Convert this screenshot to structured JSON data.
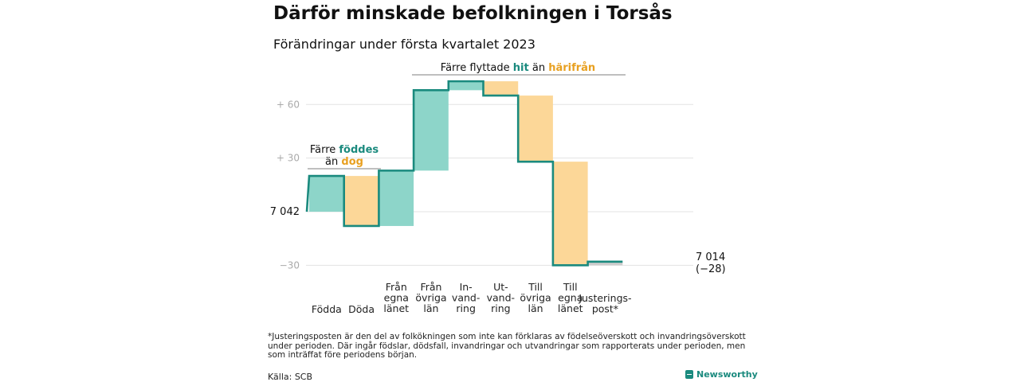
{
  "title": "Därför minskade befolkningen i Torsås",
  "subtitle": "Förändringar under första kvartalet 2023",
  "footnote": "*Justeringsposten är den del av folkökningen som inte kan förklaras av födelseöverskott och invandringsöverskott under perioden. Där ingår födslar, dödsfall, invandringar och utvandringar som rapporterats under perioden, men som inträffat före periodens början.",
  "source": "Källa: SCB",
  "brand": "Newsworthy",
  "colors": {
    "teal": "#8dd5c9",
    "orange": "#fcd798",
    "line": "#1a8a7e",
    "adjust": "#cccccc",
    "grid": "#e3e3e3",
    "tick": "#aaaaaa"
  },
  "chart_data": {
    "type": "waterfall",
    "title": "Därför minskade befolkningen i Torsås",
    "subtitle": "Förändringar under första kvartalet 2023",
    "start_label": "7 042",
    "end_label": "7 014",
    "end_change_label": "(−28)",
    "ylim": [
      -36,
      72
    ],
    "yticks": [
      {
        "value": 60,
        "label": "+ 60"
      },
      {
        "value": 30,
        "label": "+ 30"
      },
      {
        "value": 0,
        "label": "7 042"
      },
      {
        "value": -30,
        "label": "−30"
      }
    ],
    "steps": [
      {
        "label": [
          "Födda"
        ],
        "value": 20,
        "type": "inflow"
      },
      {
        "label": [
          "Döda"
        ],
        "value": -28,
        "type": "outflow"
      },
      {
        "label": [
          "Från",
          "egna",
          "länet"
        ],
        "value": 31,
        "type": "inflow"
      },
      {
        "label": [
          "Från",
          "övriga",
          "län"
        ],
        "value": 45,
        "type": "inflow"
      },
      {
        "label": [
          "In-",
          "vand-",
          "ring"
        ],
        "value": 5,
        "type": "inflow"
      },
      {
        "label": [
          "Ut-",
          "vand-",
          "ring"
        ],
        "value": -8,
        "type": "outflow"
      },
      {
        "label": [
          "Till",
          "övriga",
          "län"
        ],
        "value": -37,
        "type": "outflow"
      },
      {
        "label": [
          "Till",
          "egna",
          "länet"
        ],
        "value": -58,
        "type": "outflow"
      },
      {
        "label": [
          "Justerings-",
          "post*"
        ],
        "value": 2,
        "type": "adjustment"
      }
    ],
    "annotations": [
      {
        "text": [
          "Färre ",
          "föddes"
        ],
        "text2": [
          "än ",
          "dog"
        ]
      },
      {
        "text": [
          "Färre flyttade ",
          "hit",
          " än ",
          "härifrån"
        ]
      }
    ]
  }
}
